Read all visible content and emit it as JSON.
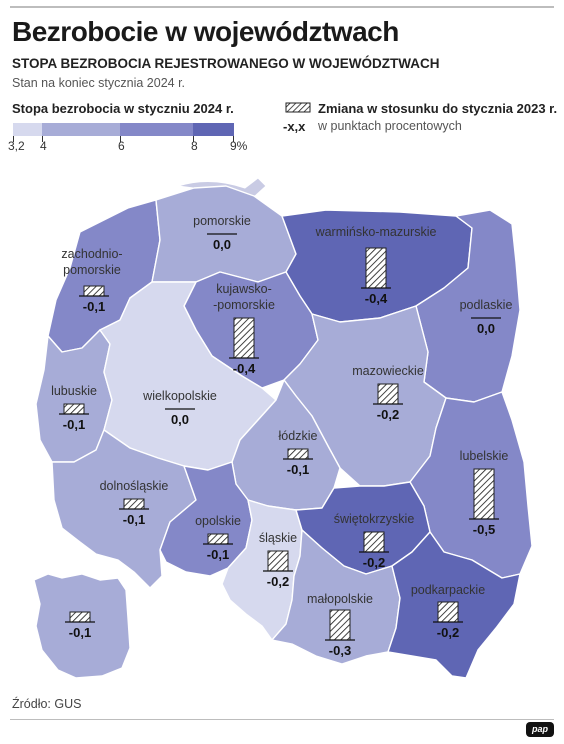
{
  "title": "Bezrobocie w województwach",
  "subtitle": "STOPA BEZROBOCIA REJESTROWANEGO W WOJEWÓDZTWACH",
  "note": "Stan na koniec stycznia 2024 r.",
  "legend": {
    "rate_title": "Stopa bezrobocia w styczniu 2024 r.",
    "ticks": [
      "3,2",
      "4",
      "6",
      "8",
      "9%"
    ],
    "colors": [
      "#d6d9ee",
      "#a7acd7",
      "#8488c8",
      "#5f66b4"
    ],
    "change_title": "Zmiana w stosunku do stycznia 2023  r.",
    "change_format": "-x,x",
    "change_unit": "w punktach procentowych"
  },
  "regions": [
    {
      "id": "zachodniopomorskie",
      "name": "zachodnio-\npomorskie",
      "change": "-0,1",
      "class": 2
    },
    {
      "id": "pomorskie",
      "name": "pomorskie",
      "change": "0,0",
      "class": 1
    },
    {
      "id": "warminsko-mazurskie",
      "name": "warmińsko-mazurskie",
      "change": "-0,4",
      "class": 3
    },
    {
      "id": "podlaskie",
      "name": "podlaskie",
      "change": "0,0",
      "class": 2
    },
    {
      "id": "kujawsko-pomorskie",
      "name": "kujawsko-\n-pomorskie",
      "change": "-0,4",
      "class": 2
    },
    {
      "id": "lubuskie",
      "name": "lubuskie",
      "change": "-0,1",
      "class": 1
    },
    {
      "id": "wielkopolskie",
      "name": "wielkopolskie",
      "change": "0,0",
      "class": 0
    },
    {
      "id": "mazowieckie",
      "name": "mazowieckie",
      "change": "-0,2",
      "class": 1
    },
    {
      "id": "lodzkie",
      "name": "łódzkie",
      "change": "-0,1",
      "class": 1
    },
    {
      "id": "lubelskie",
      "name": "lubelskie",
      "change": "-0,5",
      "class": 2
    },
    {
      "id": "dolnoslaskie",
      "name": "dolnośląskie",
      "change": "-0,1",
      "class": 1
    },
    {
      "id": "opolskie",
      "name": "opolskie",
      "change": "-0,1",
      "class": 2
    },
    {
      "id": "slaskie",
      "name": "śląskie",
      "change": "-0,2",
      "class": 0
    },
    {
      "id": "swietokrzyskie",
      "name": "świętokrzyskie",
      "change": "-0,2",
      "class": 3
    },
    {
      "id": "malopolskie",
      "name": "małopolskie",
      "change": "-0,3",
      "class": 1
    },
    {
      "id": "podkarpackie",
      "name": "podkarpackie",
      "change": "-0,2",
      "class": 3
    },
    {
      "id": "inset",
      "name": "",
      "change": "-0,1",
      "class": 1
    }
  ],
  "source": "Źródło: GUS",
  "logo": "pap"
}
